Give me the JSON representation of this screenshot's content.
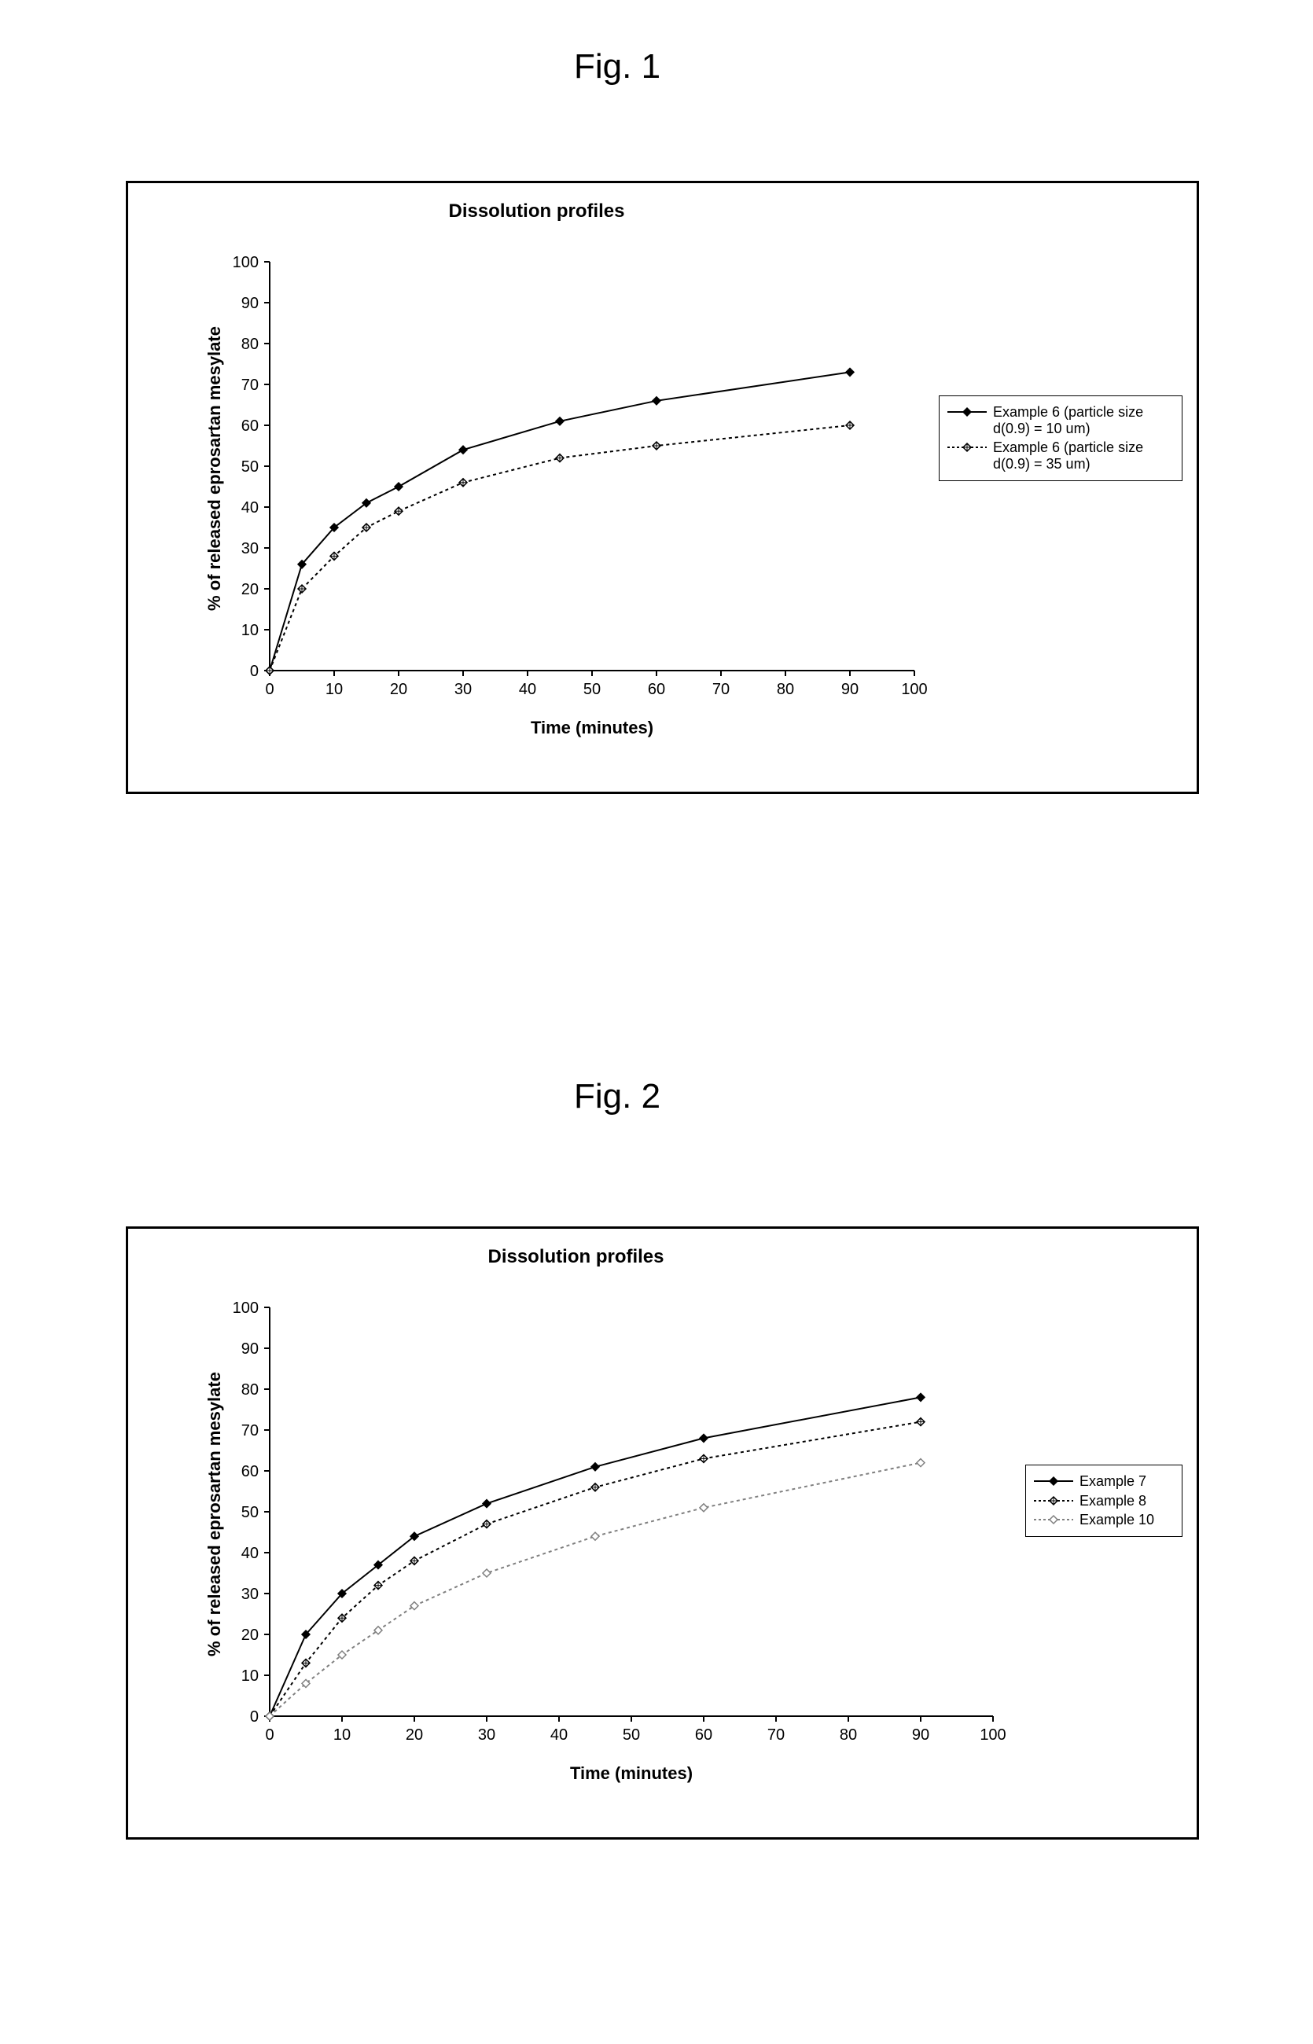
{
  "figures": {
    "fig1": {
      "label": "Fig. 1",
      "title": "Dissolution profiles",
      "xlabel": "Time (minutes)",
      "ylabel": "% of released eprosartan mesylate",
      "xlim": [
        0,
        100
      ],
      "ylim": [
        0,
        100
      ],
      "xtick_step": 10,
      "ytick_step": 10,
      "title_fontsize": 24,
      "label_fontsize": 22,
      "tick_fontsize": 20,
      "background_color": "#ffffff",
      "axis_color": "#000000",
      "series": [
        {
          "name": "Example 6 (particle size d(0.9) = 10 um)",
          "x": [
            0,
            5,
            10,
            15,
            20,
            30,
            45,
            60,
            90
          ],
          "y": [
            0,
            26,
            35,
            41,
            45,
            54,
            61,
            66,
            73
          ],
          "color": "#000000",
          "line_style": "solid",
          "line_width": 2,
          "marker": "diamond",
          "marker_size": 10
        },
        {
          "name": "Example 6 (particle size d(0.9) = 35 um)",
          "x": [
            0,
            5,
            10,
            15,
            20,
            30,
            45,
            60,
            90
          ],
          "y": [
            0,
            20,
            28,
            35,
            39,
            46,
            52,
            55,
            60
          ],
          "color": "#000000",
          "line_style": "dotted",
          "line_width": 2,
          "marker": "diamond-hatch",
          "marker_size": 10
        }
      ],
      "legend_entries": [
        "Example 6 (particle size d(0.9) = 10 um)",
        "Example 6 (particle size d(0.9) = 35 um)"
      ]
    },
    "fig2": {
      "label": "Fig. 2",
      "title": "Dissolution profiles",
      "xlabel": "Time (minutes)",
      "ylabel": "% of released eprosartan mesylate",
      "xlim": [
        0,
        100
      ],
      "ylim": [
        0,
        100
      ],
      "xtick_step": 10,
      "ytick_step": 10,
      "title_fontsize": 24,
      "label_fontsize": 22,
      "tick_fontsize": 20,
      "background_color": "#ffffff",
      "axis_color": "#000000",
      "series": [
        {
          "name": "Example 7",
          "x": [
            0,
            5,
            10,
            15,
            20,
            30,
            45,
            60,
            90
          ],
          "y": [
            0,
            20,
            30,
            37,
            44,
            52,
            61,
            68,
            78
          ],
          "color": "#000000",
          "line_style": "solid",
          "line_width": 2,
          "marker": "diamond",
          "marker_size": 10
        },
        {
          "name": "Example 8",
          "x": [
            0,
            5,
            10,
            15,
            20,
            30,
            45,
            60,
            90
          ],
          "y": [
            0,
            13,
            24,
            32,
            38,
            47,
            56,
            63,
            72
          ],
          "color": "#000000",
          "line_style": "dotted",
          "line_width": 2,
          "marker": "diamond-hatch",
          "marker_size": 10
        },
        {
          "name": "Example 10",
          "x": [
            0,
            5,
            10,
            15,
            20,
            30,
            45,
            60,
            90
          ],
          "y": [
            0,
            8,
            15,
            21,
            27,
            35,
            44,
            51,
            62
          ],
          "color": "#808080",
          "line_style": "dotted",
          "line_width": 2,
          "marker": "diamond-open",
          "marker_size": 10
        }
      ],
      "legend_entries": [
        "Example 7",
        "Example 8",
        "Example 10"
      ]
    }
  }
}
